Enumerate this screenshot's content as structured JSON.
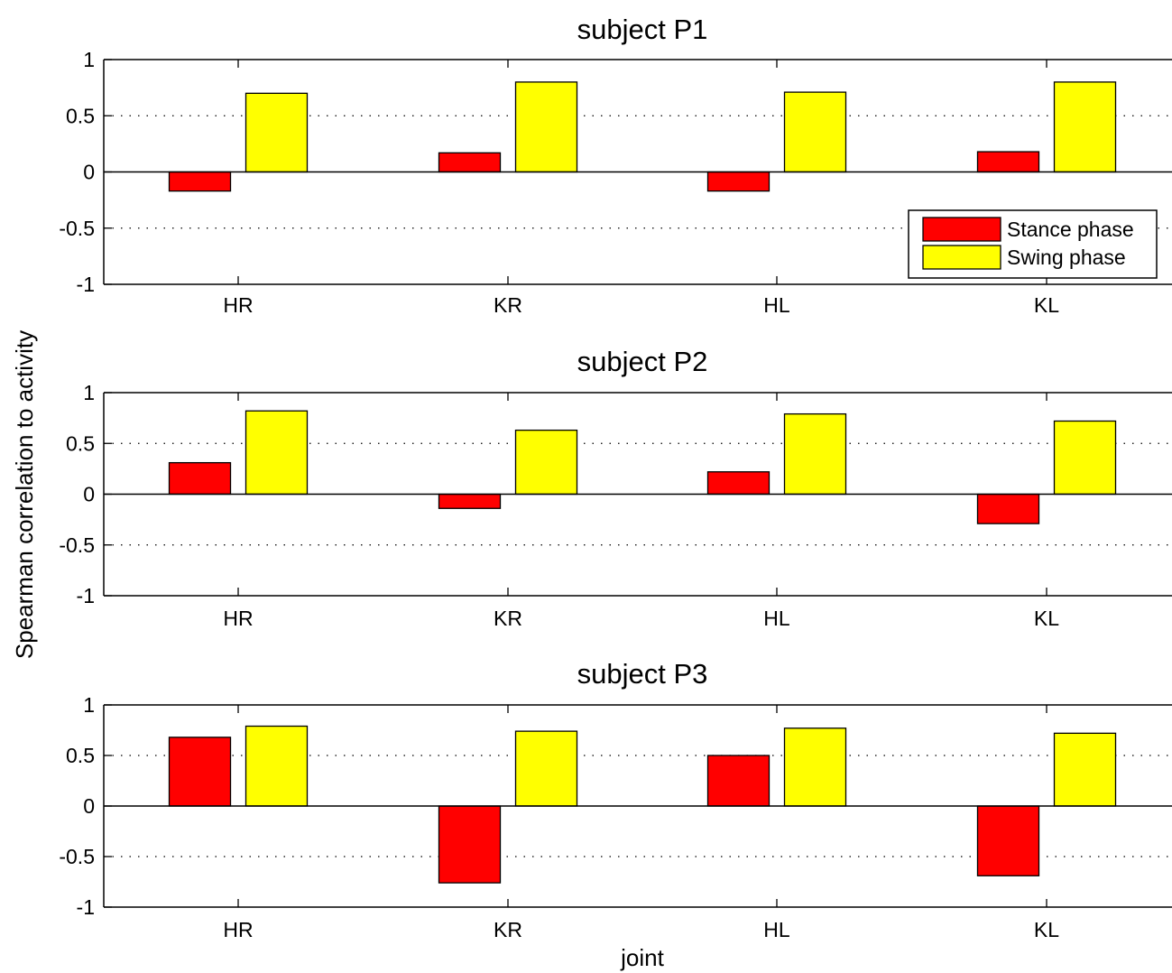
{
  "figure": {
    "ylabel": "Spearman correlation to activity",
    "xlabel": "joint"
  },
  "legend": {
    "placement": "bottom-right of first subplot",
    "entries": [
      "Stance phase",
      "Swing phase"
    ]
  },
  "colors": {
    "stance": "#ff0000",
    "swing": "#ffff00",
    "edge": "#000000",
    "grid": "#000000",
    "background": "#ffffff"
  },
  "chart_data": [
    {
      "type": "bar",
      "title": "subject P1",
      "categories": [
        "HR",
        "KR",
        "HL",
        "KL"
      ],
      "series": [
        {
          "name": "Stance phase",
          "values": [
            -0.17,
            0.17,
            -0.17,
            0.18
          ]
        },
        {
          "name": "Swing phase",
          "values": [
            0.7,
            0.8,
            0.71,
            0.8
          ]
        }
      ],
      "ylim": [
        -1,
        1
      ],
      "yticks": [
        "1",
        "0.5",
        "0",
        "-0.5",
        "-1"
      ],
      "ytick_values": [
        1,
        0.5,
        0,
        -0.5,
        -1
      ],
      "grid": "dotted at ±0.5",
      "legend": true
    },
    {
      "type": "bar",
      "title": "subject P2",
      "categories": [
        "HR",
        "KR",
        "HL",
        "KL"
      ],
      "series": [
        {
          "name": "Stance phase",
          "values": [
            0.31,
            -0.14,
            0.22,
            -0.29
          ]
        },
        {
          "name": "Swing phase",
          "values": [
            0.82,
            0.63,
            0.79,
            0.72
          ]
        }
      ],
      "ylim": [
        -1,
        1
      ],
      "yticks": [
        "1",
        "0.5",
        "0",
        "-0.5",
        "-1"
      ],
      "ytick_values": [
        1,
        0.5,
        0,
        -0.5,
        -1
      ],
      "grid": "dotted at ±0.5",
      "legend": false
    },
    {
      "type": "bar",
      "title": "subject P3",
      "categories": [
        "HR",
        "KR",
        "HL",
        "KL"
      ],
      "series": [
        {
          "name": "Stance phase",
          "values": [
            0.68,
            -0.76,
            0.5,
            -0.69
          ]
        },
        {
          "name": "Swing phase",
          "values": [
            0.79,
            0.74,
            0.77,
            0.72
          ]
        }
      ],
      "ylim": [
        -1,
        1
      ],
      "yticks": [
        "1",
        "0.5",
        "0",
        "-0.5",
        "-1"
      ],
      "ytick_values": [
        1,
        0.5,
        0,
        -0.5,
        -1
      ],
      "grid": "dotted at ±0.5",
      "legend": false
    }
  ]
}
